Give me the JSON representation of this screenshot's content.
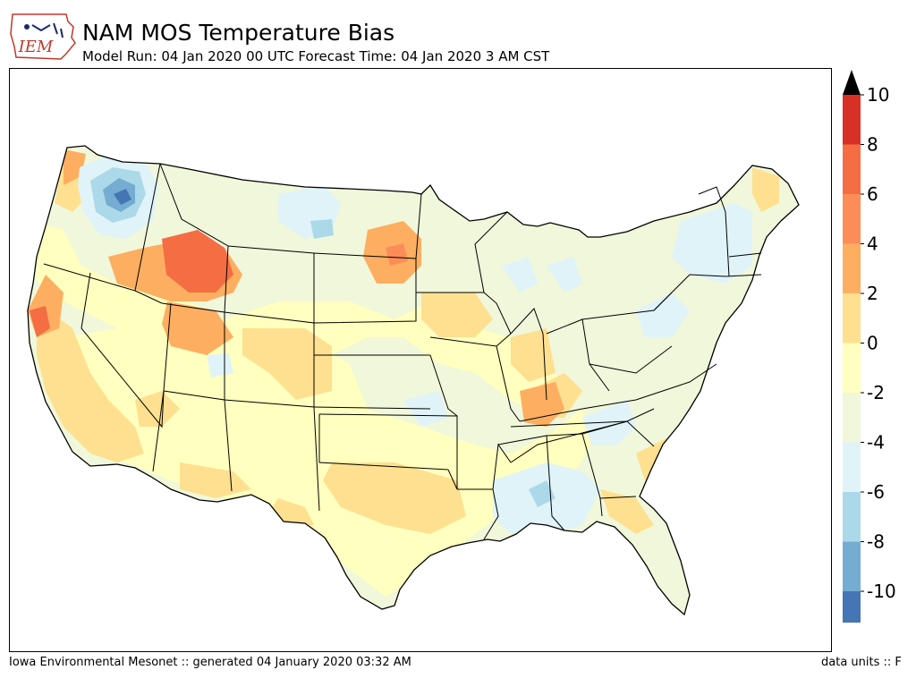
{
  "header": {
    "logo_text": "IEM",
    "title": "NAM MOS Temperature Bias",
    "subtitle": "Model Run: 04 Jan 2020 00 UTC Forecast Time: 04 Jan 2020 3 AM CST"
  },
  "footer": {
    "left": "Iowa Environmental Mesonet :: generated 04 January 2020 03:32 AM",
    "right": "data units :: F"
  },
  "colorbar": {
    "levels": [
      10,
      8,
      6,
      4,
      2,
      0,
      -2,
      -4,
      -6,
      -8,
      -10
    ],
    "labels": [
      "10",
      "8",
      "6",
      "4",
      "2",
      "0",
      "-2",
      "-4",
      "-6",
      "-8",
      "-10"
    ],
    "bin_colors": [
      "#d73027",
      "#f46d43",
      "#fc8d59",
      "#fdae61",
      "#fee090",
      "#ffffbf",
      "#f0f7da",
      "#e0f3f8",
      "#abd9e9",
      "#74add1",
      "#4575b4"
    ],
    "over_color": "#000000",
    "under_color": "#000000"
  },
  "map": {
    "type": "filled contour",
    "region": "Contiguous United States",
    "variable": "NAM MOS Temperature Bias",
    "units": "F"
  }
}
